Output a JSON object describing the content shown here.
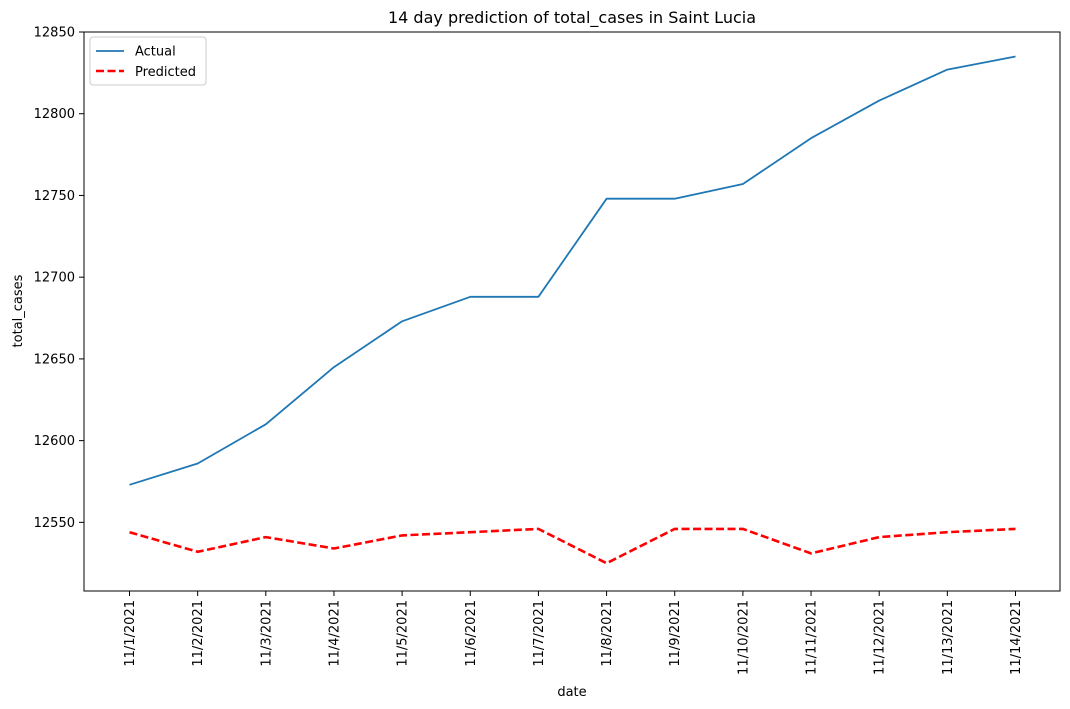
{
  "chart_data": {
    "type": "line",
    "title": "14 day prediction of total_cases in Saint Lucia",
    "xlabel": "date",
    "ylabel": "total_cases",
    "categories": [
      "11/1/2021",
      "11/2/2021",
      "11/3/2021",
      "11/4/2021",
      "11/5/2021",
      "11/6/2021",
      "11/7/2021",
      "11/8/2021",
      "11/9/2021",
      "11/10/2021",
      "11/11/2021",
      "11/12/2021",
      "11/13/2021",
      "11/14/2021"
    ],
    "yticks": [
      12550,
      12600,
      12650,
      12700,
      12750,
      12800,
      12850
    ],
    "ylim": [
      12508,
      12850
    ],
    "legend_position": "upper-left",
    "grid": false,
    "series": [
      {
        "name": "Actual",
        "color": "#1f77b4",
        "style": "solid",
        "values": [
          12573,
          12586,
          12610,
          12645,
          12673,
          12688,
          12688,
          12748,
          12748,
          12757,
          12785,
          12808,
          12827,
          12835
        ]
      },
      {
        "name": "Predicted",
        "color": "#ff0000",
        "style": "dashed",
        "values": [
          12544,
          12532,
          12541,
          12534,
          12542,
          12544,
          12546,
          12525,
          12546,
          12546,
          12531,
          12541,
          12544,
          12546
        ]
      }
    ]
  }
}
